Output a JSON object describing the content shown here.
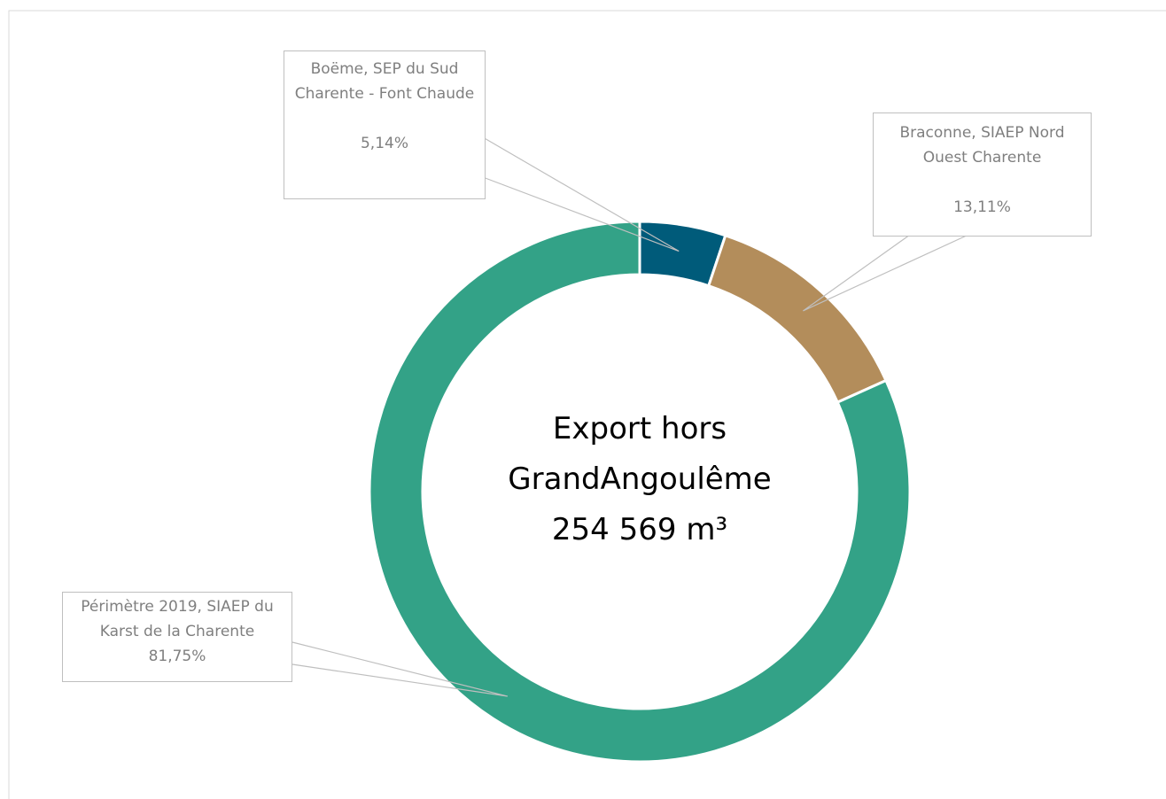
{
  "chart_data": {
    "type": "donut",
    "categories": [
      "Boëme,  SEP du Sud Charente - Font Chaude",
      "Braconne, SIAEP Nord Ouest Charente",
      "Périmètre 2019,  SIAEP du Karst de la Charente"
    ],
    "values": [
      5.14,
      13.11,
      81.75
    ],
    "value_labels": [
      "5,14%",
      "13,11%",
      "81,75%"
    ],
    "colors": [
      "#005b7a",
      "#b38d5b",
      "#33a287"
    ],
    "center_text": [
      "Export hors",
      "GrandAngoulême",
      "254 569  m³"
    ]
  }
}
